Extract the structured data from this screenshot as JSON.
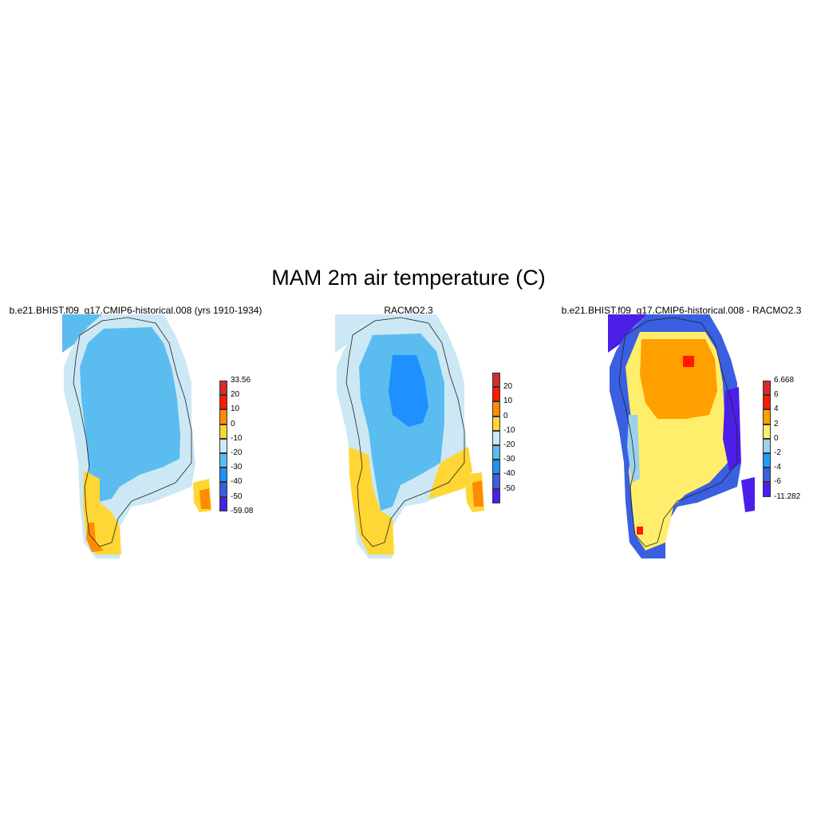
{
  "figure": {
    "title": "MAM 2m air temperature (C)"
  },
  "panels": [
    {
      "title": "b.e21.BHIST.f09_g17.CMIP6-historical.008 (yrs 1910-1934)",
      "colorbar": {
        "colors": [
          "#d42b2b",
          "#ff1a00",
          "#ff8c00",
          "#ffd633",
          "#cce8f5",
          "#5bbcf0",
          "#1e90ff",
          "#3a5fe0",
          "#4b1fe8"
        ],
        "labels": [
          "33.56",
          "20",
          "10",
          "0",
          "-10",
          "-20",
          "-30",
          "-40",
          "-50",
          "-59.08"
        ]
      }
    },
    {
      "title": "RACMO2.3",
      "colorbar": {
        "colors": [
          "#d42b2b",
          "#ff1a00",
          "#ff8c00",
          "#ffd633",
          "#cce8f5",
          "#5bbcf0",
          "#1e90ff",
          "#3a5fe0",
          "#4b1fe8"
        ],
        "labels": [
          "20",
          "10",
          "0",
          "-10",
          "-20",
          "-30",
          "-40",
          "-50"
        ]
      }
    },
    {
      "title": "b.e21.BHIST.f09_g17.CMIP6-historical.008 - RACMO2.3",
      "colorbar": {
        "colors": [
          "#d42b2b",
          "#ff1a00",
          "#ff9f00",
          "#ffee6b",
          "#9ad1ee",
          "#1a9fff",
          "#3a5fe0",
          "#4b1fe8"
        ],
        "labels": [
          "6.668",
          "6",
          "4",
          "2",
          "0",
          "-2",
          "-4",
          "-6",
          "-11.282"
        ]
      }
    }
  ]
}
